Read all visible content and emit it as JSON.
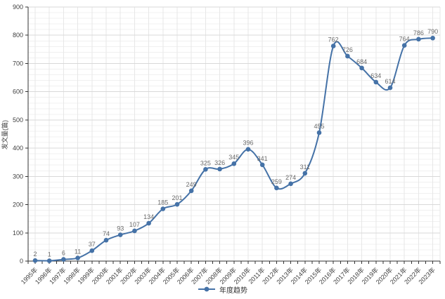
{
  "chart_data": {
    "type": "line",
    "title": "",
    "xlabel": "",
    "ylabel": "发文量(篇)",
    "legend_position": "bottom",
    "grid": true,
    "smooth": true,
    "ylim": [
      0,
      900
    ],
    "y_tick_step": 100,
    "y_minor_step": 20,
    "categories": [
      "1995年",
      "1996年",
      "1997年",
      "1998年",
      "1999年",
      "2000年",
      "2001年",
      "2002年",
      "2003年",
      "2004年",
      "2005年",
      "2006年",
      "2007年",
      "2008年",
      "2009年",
      "2010年",
      "2011年",
      "2012年",
      "2013年",
      "2014年",
      "2015年",
      "2016年",
      "2017年",
      "2018年",
      "2019年",
      "2020年",
      "2021年",
      "2022年",
      "2023年"
    ],
    "series": [
      {
        "name": "年度趋势",
        "values": [
          2,
          1,
          6,
          11,
          37,
          74,
          93,
          107,
          134,
          185,
          201,
          249,
          325,
          326,
          345,
          396,
          341,
          259,
          274,
          311,
          455,
          762,
          726,
          684,
          634,
          614,
          764,
          786,
          790
        ]
      }
    ],
    "colors": {
      "line": "#4572a7",
      "marker": "#4572a7",
      "data_label": "#6b6b6b",
      "axis_text": "#404040",
      "axis_line": "#333333",
      "grid_major": "#d9d9d9",
      "grid_minor": "#f0f0f0",
      "grid_vertical": "#e7e7e7",
      "background": "#ffffff"
    }
  }
}
